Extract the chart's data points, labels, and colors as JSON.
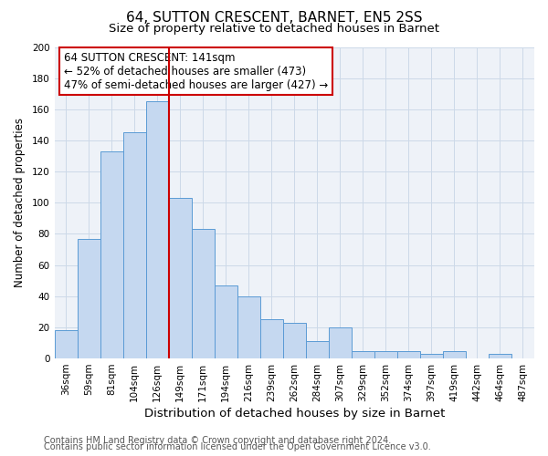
{
  "title": "64, SUTTON CRESCENT, BARNET, EN5 2SS",
  "subtitle": "Size of property relative to detached houses in Barnet",
  "xlabel": "Distribution of detached houses by size in Barnet",
  "ylabel": "Number of detached properties",
  "bar_color": "#c5d8f0",
  "bar_edge_color": "#5b9bd5",
  "grid_color": "#ccd9e8",
  "background_color": "#eef2f8",
  "categories": [
    "36sqm",
    "59sqm",
    "81sqm",
    "104sqm",
    "126sqm",
    "149sqm",
    "171sqm",
    "194sqm",
    "216sqm",
    "239sqm",
    "262sqm",
    "284sqm",
    "307sqm",
    "329sqm",
    "352sqm",
    "374sqm",
    "397sqm",
    "419sqm",
    "442sqm",
    "464sqm",
    "487sqm"
  ],
  "values": [
    18,
    77,
    133,
    145,
    165,
    103,
    83,
    47,
    40,
    25,
    23,
    11,
    20,
    5,
    5,
    5,
    3,
    5,
    0,
    3,
    0
  ],
  "ylim": [
    0,
    200
  ],
  "yticks": [
    0,
    20,
    40,
    60,
    80,
    100,
    120,
    140,
    160,
    180,
    200
  ],
  "vline_bin_index": 4,
  "vline_color": "#cc0000",
  "ann_line1": "64 SUTTON CRESCENT: 141sqm",
  "ann_line2": "← 52% of detached houses are smaller (473)",
  "ann_line3": "47% of semi-detached houses are larger (427) →",
  "footer_line1": "Contains HM Land Registry data © Crown copyright and database right 2024.",
  "footer_line2": "Contains public sector information licensed under the Open Government Licence v3.0.",
  "title_fontsize": 11,
  "subtitle_fontsize": 9.5,
  "xlabel_fontsize": 9.5,
  "ylabel_fontsize": 8.5,
  "tick_fontsize": 7.5,
  "ann_fontsize": 8.5,
  "footer_fontsize": 7
}
